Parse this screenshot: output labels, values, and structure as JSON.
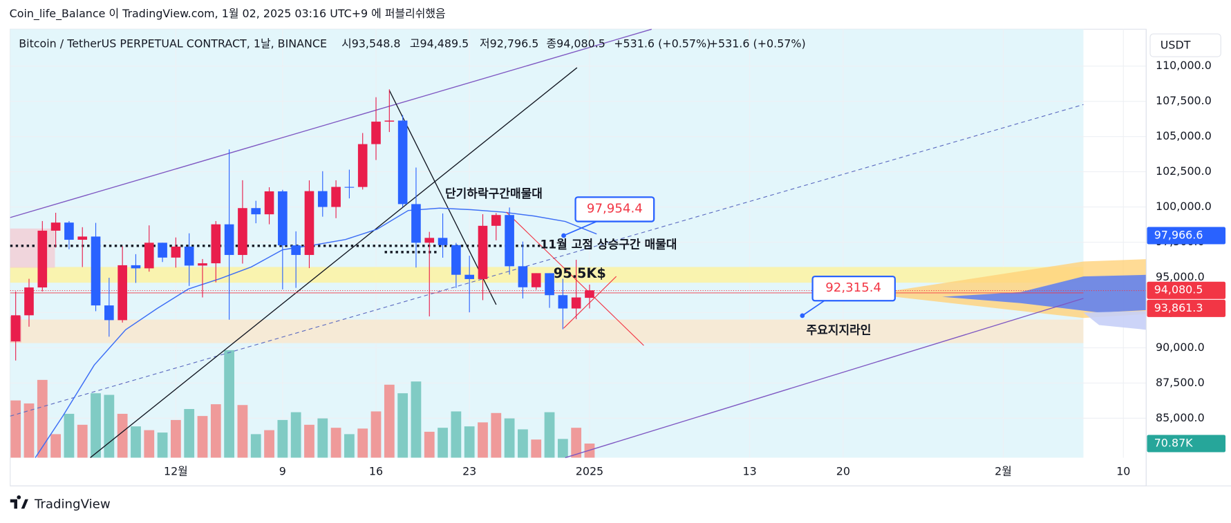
{
  "header": {
    "text": "Coin_life_Balance 이 TradingView.com, 1월 02, 2025 03:16 UTC+9 에 퍼블리쉬했음"
  },
  "legend": {
    "symbol": "Bitcoin / TetherUS PERPETUAL CONTRACT, 1날, BINANCE",
    "open": "시93,548.8",
    "high": "고94,489.5",
    "low": "저92,796.5",
    "close": "종94,080.5",
    "change": "+531.6 (+0.57%)",
    "change_2": "+531.6 (+0.57%)"
  },
  "currency": "USDT",
  "annotations": {
    "short_term": "단기하락구간매물대",
    "nov_high": "11월 고점 상승구간 매물대",
    "level": "95.5K$",
    "support": "주요지지라인",
    "callout_1": "97,954.4",
    "callout_2": "92,315.4"
  },
  "footer": {
    "logo": "TradingView"
  },
  "chart_data": {
    "type": "candlestick",
    "up_color": "#e91e4c",
    "down_color": "#2962ff",
    "volume_up_color": "#ef9a9a",
    "volume_down_color": "#80cbc4",
    "x": [
      0,
      1,
      2,
      3,
      4,
      5,
      6,
      7,
      8,
      9,
      10,
      11,
      12,
      13,
      14,
      15,
      16,
      17,
      18,
      19,
      20,
      21,
      22,
      23,
      24,
      25,
      26,
      27,
      28,
      29,
      30,
      31,
      32,
      33,
      34,
      35,
      36,
      37,
      38,
      39,
      40,
      41,
      42,
      43
    ],
    "open": [
      90465,
      92310,
      94286,
      98317,
      98892,
      97672,
      97900,
      93010,
      91965,
      95863,
      95643,
      97460,
      96407,
      97185,
      95840,
      96002,
      98768,
      96593,
      99920,
      99480,
      101109,
      97276,
      96593,
      101125,
      100001,
      101424,
      101420,
      104463,
      106058,
      106133,
      100204,
      97461,
      97805,
      97291,
      95186,
      94881,
      98663,
      99429,
      95792,
      94299,
      95300,
      93738,
      92792,
      93548.8
    ],
    "high": [
      94000,
      94900,
      99000,
      99588,
      98999,
      98564,
      98871,
      94973,
      97208,
      96650,
      98693,
      97463,
      97836,
      98130,
      96305,
      99000,
      104088,
      101898,
      100439,
      101399,
      101215,
      98270,
      101888,
      102540,
      101895,
      102650,
      105250,
      107793,
      108353,
      106524,
      102800,
      98233,
      99540,
      97448,
      96538,
      99487,
      99569,
      99963,
      97544,
      95300,
      95300,
      94903,
      96250,
      94489.5
    ],
    "low": [
      89100,
      91500,
      94000,
      97122,
      97000,
      95734,
      92600,
      90791,
      91792,
      94610,
      95407,
      96092,
      95693,
      94395,
      93578,
      94650,
      91998,
      95981,
      98844,
      98771,
      94150,
      94256,
      95658,
      99311,
      99205,
      100609,
      101237,
      103333,
      105321,
      100000,
      95700,
      92232,
      96398,
      94250,
      92520,
      93385,
      97632,
      95199,
      93500,
      94117,
      92838,
      91317,
      92033,
      92796.5
    ],
    "close": [
      92310,
      94286,
      98317,
      98892,
      97672,
      97900,
      93010,
      91965,
      95863,
      95643,
      97460,
      96407,
      97185,
      95840,
      96002,
      98768,
      96593,
      99920,
      99480,
      101109,
      97276,
      96593,
      101125,
      100001,
      101424,
      101420,
      104463,
      106058,
      106133,
      100204,
      97461,
      97805,
      97291,
      95186,
      94881,
      98663,
      99429,
      95792,
      94299,
      95300,
      93738,
      92792,
      93576,
      94080.5
    ],
    "volume": [
      287000,
      272000,
      390000,
      118000,
      220000,
      165000,
      323000,
      315000,
      220000,
      157000,
      138000,
      126000,
      189000,
      244000,
      209000,
      268000,
      539000,
      264000,
      118000,
      138000,
      189000,
      228000,
      165000,
      197000,
      150000,
      118000,
      146000,
      232000,
      366000,
      323000,
      382000,
      130000,
      150000,
      232000,
      157000,
      177000,
      224000,
      197000,
      142000,
      91000,
      228000,
      94000,
      150000,
      70870
    ],
    "volume_last_label": "70.87K",
    "xlim": [
      -0.41,
      84.71
    ],
    "xticks": [
      {
        "value": 12,
        "label": "12월"
      },
      {
        "value": 20,
        "label": "9"
      },
      {
        "value": 27,
        "label": "16"
      },
      {
        "value": 34,
        "label": "23"
      },
      {
        "value": 43,
        "label": "2025"
      },
      {
        "value": 55,
        "label": "13"
      },
      {
        "value": 62,
        "label": "20"
      },
      {
        "value": 74,
        "label": "2월"
      },
      {
        "value": 83,
        "label": "10"
      }
    ],
    "ylim": [
      82200,
      112620
    ],
    "yticks": [
      {
        "value": 85000,
        "label": "85,000.0"
      },
      {
        "value": 87500,
        "label": "87,500.0"
      },
      {
        "value": 90000,
        "label": "90,000.0"
      },
      {
        "value": 92500,
        "label": "92,500.0"
      },
      {
        "value": 95000,
        "label": "95,000.0"
      },
      {
        "value": 97500,
        "label": "97,500.0"
      },
      {
        "value": 100000,
        "label": "100,000.0"
      },
      {
        "value": 102500,
        "label": "102,500.0"
      },
      {
        "value": 105000,
        "label": "105,000.0"
      },
      {
        "value": 107500,
        "label": "107,500.0"
      },
      {
        "value": 110000,
        "label": "110,000.0"
      }
    ],
    "grid": true,
    "price_labels": [
      {
        "value": 97966.6,
        "label": "97,966.6",
        "color": "#2962ff"
      },
      {
        "value": 94080.5,
        "label": "94,080.5",
        "color": "#f23645"
      },
      {
        "value": 93861.3,
        "label": "93,861.3",
        "color": "#f23645"
      }
    ]
  }
}
